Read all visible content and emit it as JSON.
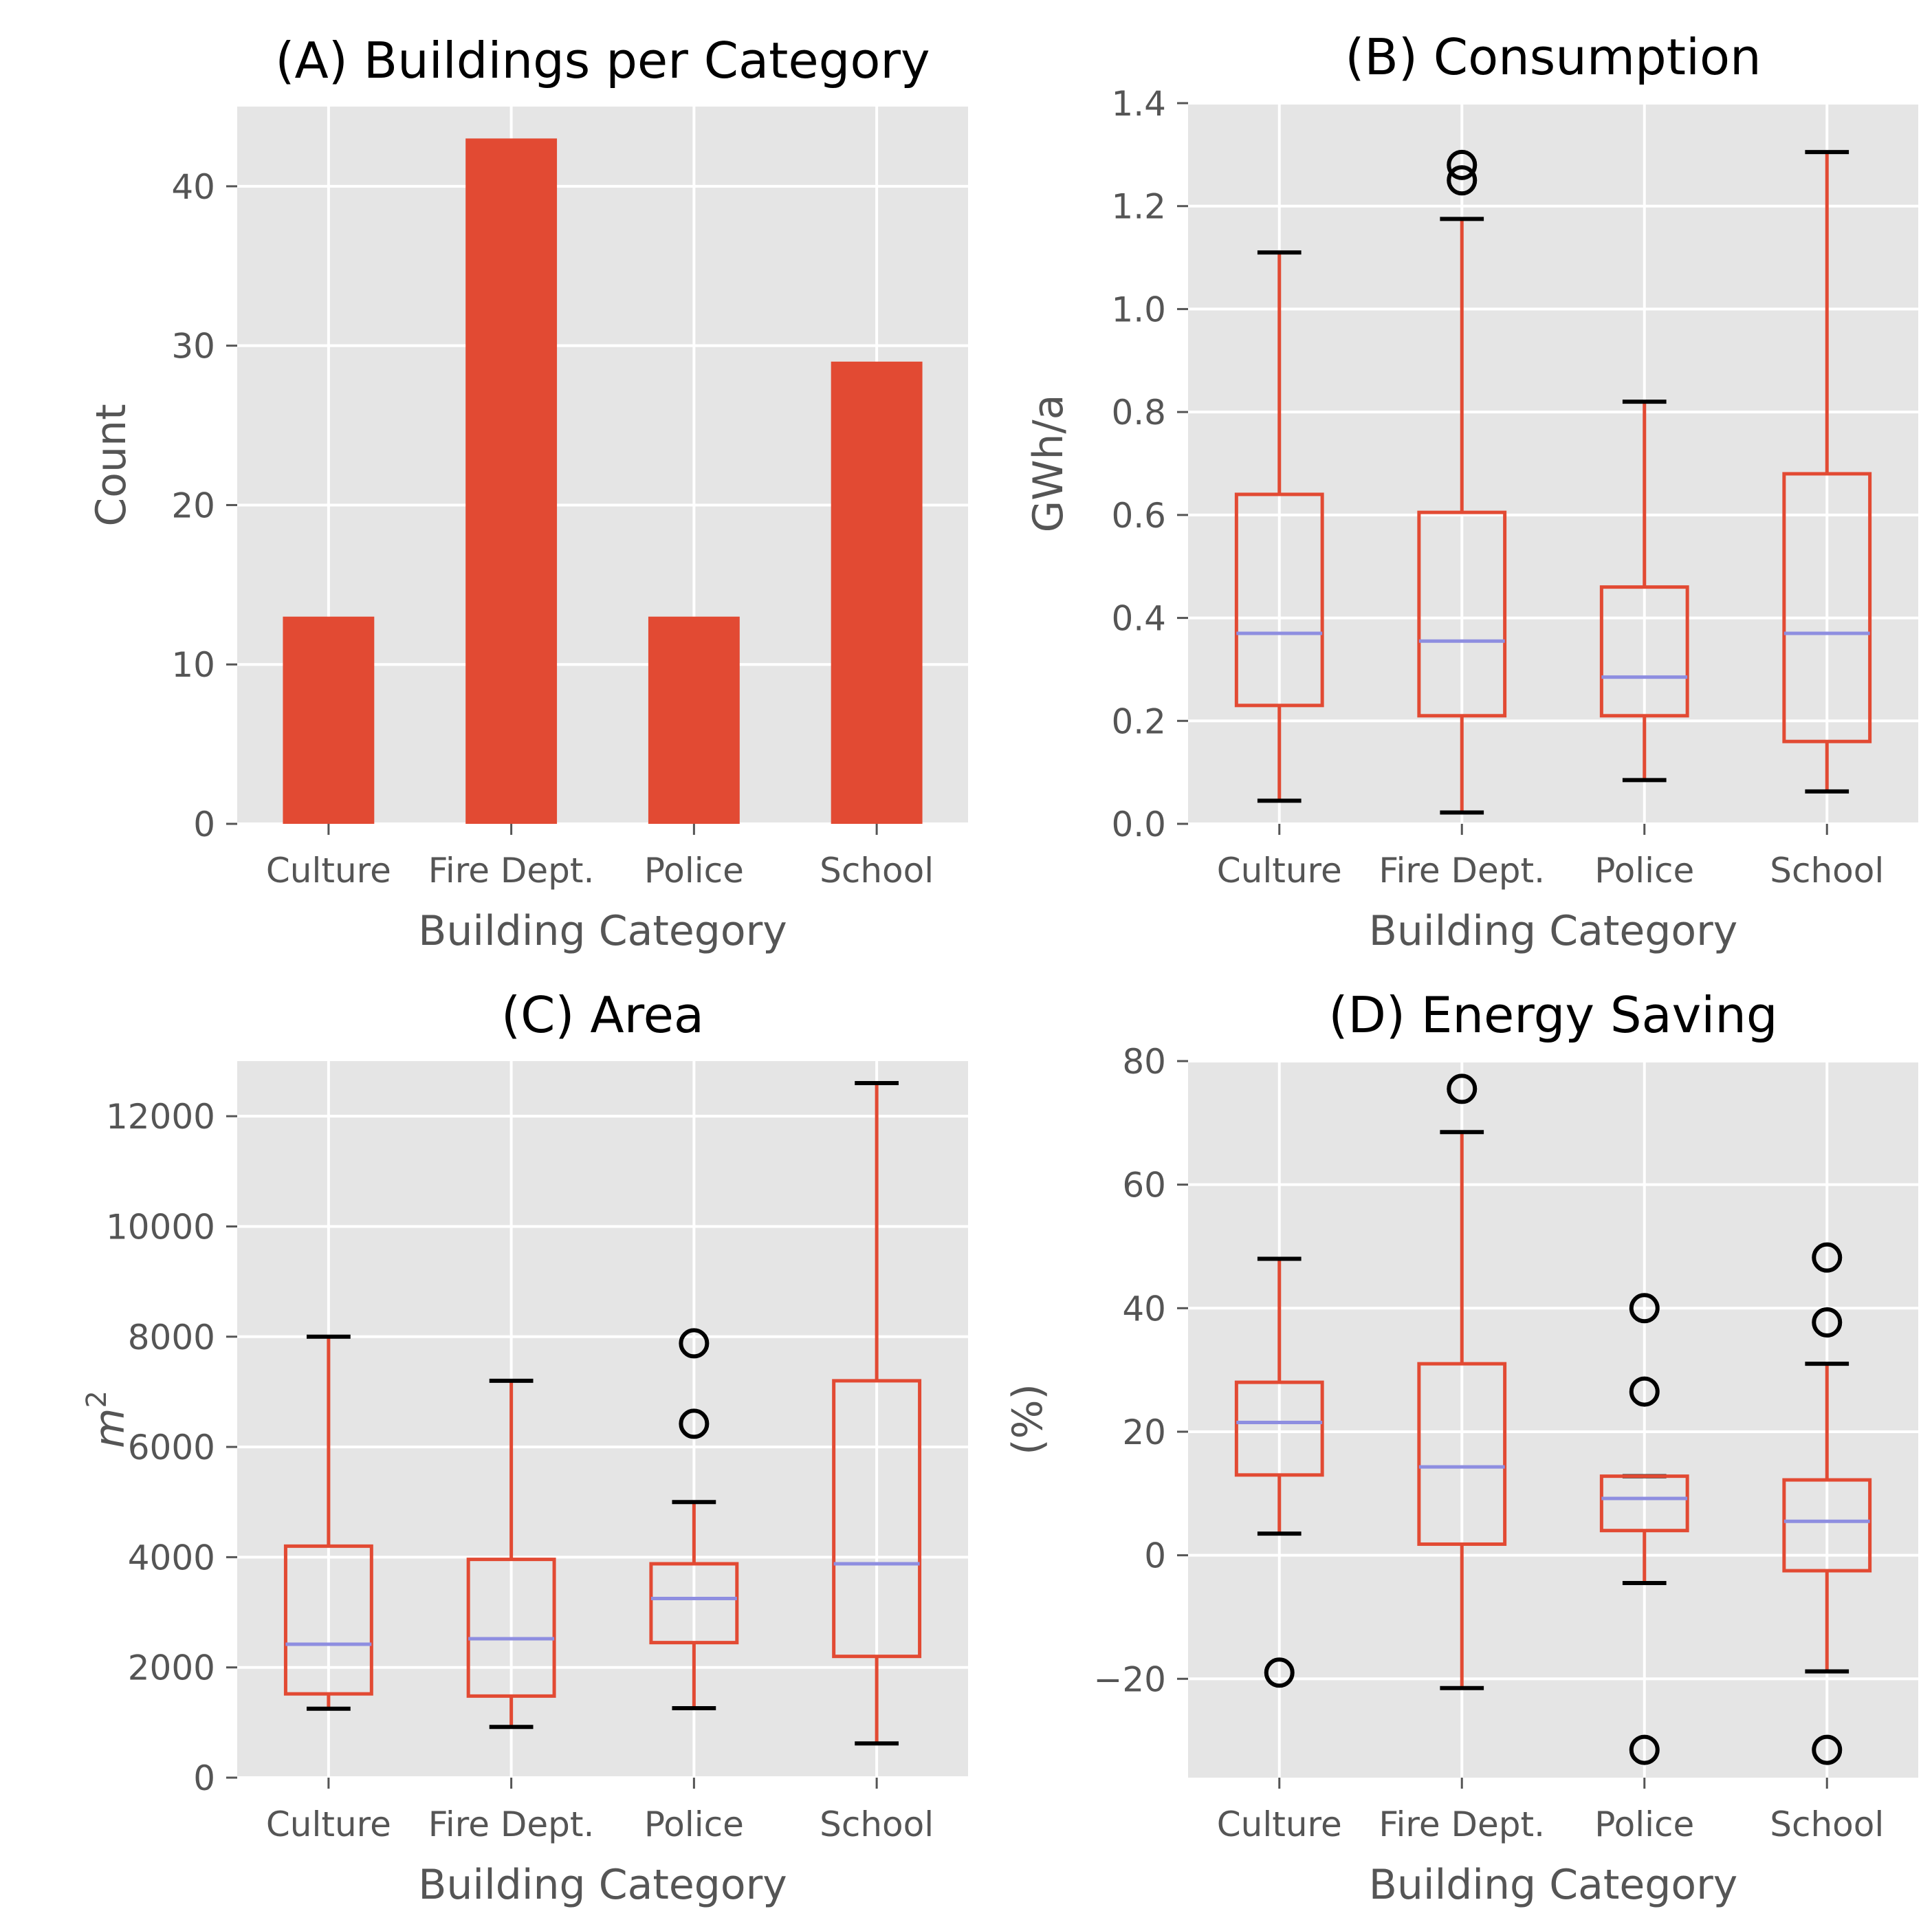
{
  "chart_data": [
    {
      "id": "A",
      "type": "bar",
      "title": "(A) Buildings per Category",
      "xlabel": "Building Category",
      "ylabel": "Count",
      "categories": [
        "Culture",
        "Fire Dept.",
        "Police",
        "School"
      ],
      "values": [
        13,
        43,
        13,
        29
      ],
      "ylim": [
        0,
        45
      ],
      "yticks": [
        0,
        10,
        20,
        30,
        40
      ],
      "ytick_labels": [
        "0",
        "10",
        "20",
        "30",
        "40"
      ],
      "grid": true,
      "bar_color": "#E24A33"
    },
    {
      "id": "B",
      "type": "box",
      "title": "(B) Consumption",
      "xlabel": "Building Category",
      "ylabel": "GWh/a",
      "categories": [
        "Culture",
        "Fire Dept.",
        "Police",
        "School"
      ],
      "ylim": [
        0.0,
        1.4
      ],
      "yticks": [
        0.0,
        0.2,
        0.4,
        0.6,
        0.8,
        1.0,
        1.2,
        1.4
      ],
      "ytick_labels": [
        "0.0",
        "0.2",
        "0.4",
        "0.6",
        "0.8",
        "1.0",
        "1.2",
        "1.4"
      ],
      "grid": true,
      "boxes": [
        {
          "whisker_low": 0.045,
          "q1": 0.23,
          "median": 0.37,
          "q3": 0.64,
          "whisker_high": 1.11,
          "outliers": []
        },
        {
          "whisker_low": 0.022,
          "q1": 0.21,
          "median": 0.355,
          "q3": 0.605,
          "whisker_high": 1.175,
          "outliers": [
            1.25,
            1.28
          ]
        },
        {
          "whisker_low": 0.085,
          "q1": 0.21,
          "median": 0.285,
          "q3": 0.46,
          "whisker_high": 0.82,
          "outliers": []
        },
        {
          "whisker_low": 0.063,
          "q1": 0.16,
          "median": 0.37,
          "q3": 0.68,
          "whisker_high": 1.305,
          "outliers": []
        }
      ]
    },
    {
      "id": "C",
      "type": "box",
      "title": "(C) Area",
      "xlabel": "Building Category",
      "ylabel": "m",
      "ylabel_sup": "2",
      "categories": [
        "Culture",
        "Fire Dept.",
        "Police",
        "School"
      ],
      "ylim": [
        0,
        13000
      ],
      "yticks": [
        0,
        2000,
        4000,
        6000,
        8000,
        10000,
        12000
      ],
      "ytick_labels": [
        "0",
        "2000",
        "4000",
        "6000",
        "8000",
        "10000",
        "12000"
      ],
      "grid": true,
      "boxes": [
        {
          "whisker_low": 1250,
          "q1": 1520,
          "median": 2420,
          "q3": 4200,
          "whisker_high": 8000,
          "outliers": []
        },
        {
          "whisker_low": 920,
          "q1": 1480,
          "median": 2520,
          "q3": 3960,
          "whisker_high": 7200,
          "outliers": []
        },
        {
          "whisker_low": 1260,
          "q1": 2450,
          "median": 3250,
          "q3": 3880,
          "whisker_high": 5000,
          "outliers": [
            6420,
            7880
          ]
        },
        {
          "whisker_low": 620,
          "q1": 2200,
          "median": 3880,
          "q3": 7200,
          "whisker_high": 12600,
          "outliers": []
        }
      ]
    },
    {
      "id": "D",
      "type": "box",
      "title": "(D) Energy Saving",
      "xlabel": "Building Category",
      "ylabel": "(%)",
      "categories": [
        "Culture",
        "Fire Dept.",
        "Police",
        "School"
      ],
      "ylim": [
        -36,
        80
      ],
      "yticks": [
        -20,
        0,
        20,
        40,
        60,
        80
      ],
      "ytick_labels": [
        "−20",
        "0",
        "20",
        "40",
        "60",
        "80"
      ],
      "grid": true,
      "boxes": [
        {
          "whisker_low": 3.5,
          "q1": 13,
          "median": 21.5,
          "q3": 28,
          "whisker_high": 48,
          "outliers": [
            -19
          ]
        },
        {
          "whisker_low": -21.5,
          "q1": 1.8,
          "median": 14.3,
          "q3": 31,
          "whisker_high": 68.5,
          "outliers": [
            75.5
          ]
        },
        {
          "whisker_low": -4.5,
          "q1": 4,
          "median": 9.2,
          "q3": 12.8,
          "whisker_high": 12.8,
          "outliers": [
            26.5,
            40,
            -31.5
          ]
        },
        {
          "whisker_low": -18.8,
          "q1": -2.5,
          "median": 5.5,
          "q3": 12.2,
          "whisker_high": 31,
          "outliers": [
            37.7,
            48.2,
            -31.5
          ]
        }
      ]
    }
  ],
  "colors": {
    "panel_background": "#e5e5e5",
    "grid": "#ffffff",
    "bar": "#E24A33",
    "box": "#E24A33",
    "median": "#8E8EE0",
    "whisker_cap": "#000000",
    "outlier": "#000000",
    "tick_label": "#555555"
  }
}
